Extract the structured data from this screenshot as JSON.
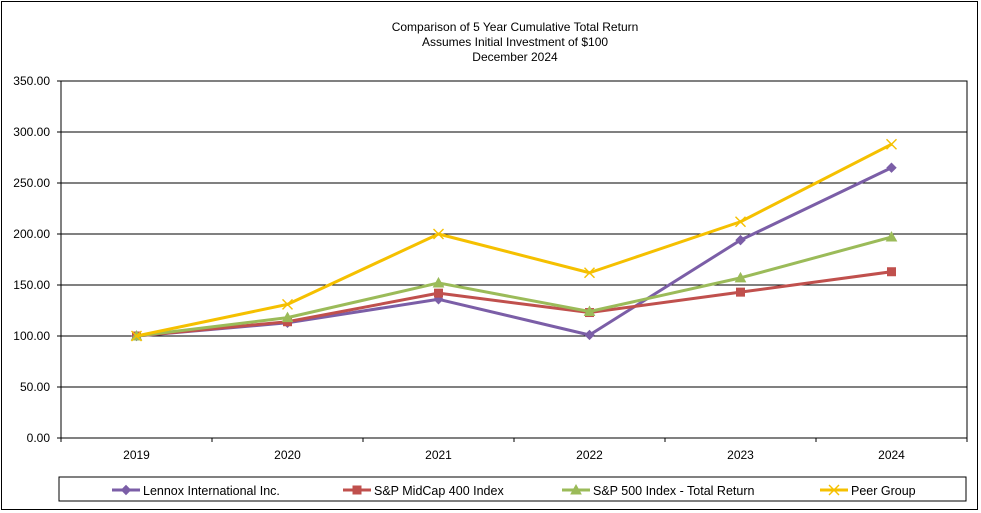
{
  "chart_data": {
    "type": "line",
    "title_lines": [
      "Comparison of 5 Year Cumulative Total Return",
      "Assumes Initial Investment of $100",
      "December 2024"
    ],
    "xlabel": "",
    "ylabel": "",
    "categories": [
      "2019",
      "2020",
      "2021",
      "2022",
      "2023",
      "2024"
    ],
    "y_ticks": [
      "0.00",
      "50.00",
      "100.00",
      "150.00",
      "200.00",
      "250.00",
      "300.00",
      "350.00"
    ],
    "ylim": [
      0,
      350
    ],
    "grid": "horizontal",
    "legend_position": "bottom",
    "series": [
      {
        "name": "Lennox International Inc.",
        "color": "#7b5ea7",
        "marker": "diamond",
        "values": [
          100,
          113,
          136,
          101,
          194,
          265
        ]
      },
      {
        "name": "S&P MidCap 400 Index",
        "color": "#c0504d",
        "marker": "square",
        "values": [
          100,
          114,
          142,
          123,
          143,
          163
        ]
      },
      {
        "name": "S&P 500 Index - Total Return",
        "color": "#9bbb59",
        "marker": "triangle",
        "values": [
          100,
          118,
          152,
          124,
          157,
          197
        ]
      },
      {
        "name": "Peer Group",
        "color": "#f5c000",
        "marker": "x",
        "values": [
          100,
          131,
          200,
          162,
          212,
          288
        ]
      }
    ]
  }
}
